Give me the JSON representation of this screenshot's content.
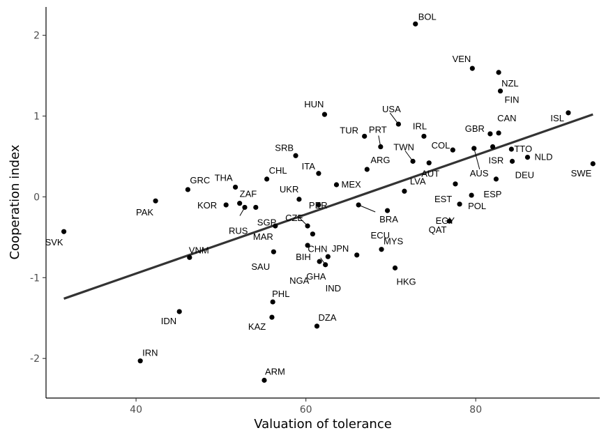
{
  "chart_data": {
    "type": "scatter",
    "xlabel": "Valuation of tolerance",
    "ylabel": "Cooperation index",
    "xlim": [
      29.4,
      94.6
    ],
    "ylim": [
      -2.49,
      2.35
    ],
    "xticks": [
      40,
      60,
      80
    ],
    "yticks": [
      -2,
      -1,
      0,
      1,
      2
    ],
    "grid": false,
    "colors": {
      "point": "#000000",
      "trend": "#333333",
      "axis": "#000000",
      "tick_label": "#4d4d4d"
    },
    "trendline": {
      "x": [
        31.5,
        93.8
      ],
      "y": [
        -1.26,
        1.02
      ]
    },
    "points": [
      {
        "label": "BOL",
        "x": 72.9,
        "y": 2.14
      },
      {
        "label": "VEN",
        "x": 79.6,
        "y": 1.59
      },
      {
        "label": "NZL",
        "x": 82.7,
        "y": 1.54
      },
      {
        "label": "FIN",
        "x": 82.9,
        "y": 1.31
      },
      {
        "label": "ISL",
        "x": 90.9,
        "y": 1.04
      },
      {
        "label": "HUN",
        "x": 62.2,
        "y": 1.02
      },
      {
        "label": "USA",
        "x": 70.9,
        "y": 0.9
      },
      {
        "label": "CAN",
        "x": 82.7,
        "y": 0.79
      },
      {
        "label": "GBR",
        "x": 81.7,
        "y": 0.78
      },
      {
        "label": "IRL",
        "x": 73.9,
        "y": 0.75
      },
      {
        "label": "TUR",
        "x": 66.9,
        "y": 0.75
      },
      {
        "label": "PRT",
        "x": 68.8,
        "y": 0.62
      },
      {
        "label": "TTO",
        "x": 84.2,
        "y": 0.59
      },
      {
        "label": "AUS",
        "x": 79.8,
        "y": 0.6
      },
      {
        "label": "SRB",
        "x": 58.8,
        "y": 0.51
      },
      {
        "label": "NLD",
        "x": 86.1,
        "y": 0.49
      },
      {
        "label": "ISR",
        "x": 82.0,
        "y": 0.62
      },
      {
        "label": "TWN",
        "x": 72.6,
        "y": 0.44
      },
      {
        "label": "COL",
        "x": 77.3,
        "y": 0.58
      },
      {
        "label": "DEU",
        "x": 84.3,
        "y": 0.44
      },
      {
        "label": "SWE",
        "x": 93.8,
        "y": 0.41
      },
      {
        "label": "AUT",
        "x": 74.5,
        "y": 0.42
      },
      {
        "label": "ARG",
        "x": 67.2,
        "y": 0.34
      },
      {
        "label": "ITA",
        "x": 61.5,
        "y": 0.29
      },
      {
        "label": "CHL",
        "x": 55.4,
        "y": 0.22
      },
      {
        "label": "ESP",
        "x": 82.4,
        "y": 0.22
      },
      {
        "label": "MEX",
        "x": 63.6,
        "y": 0.15
      },
      {
        "label": "THA",
        "x": 51.7,
        "y": 0.12
      },
      {
        "label": "GRC",
        "x": 46.1,
        "y": 0.09
      },
      {
        "label": "EST",
        "x": 77.6,
        "y": 0.16
      },
      {
        "label": "LVA",
        "x": 71.6,
        "y": 0.07
      },
      {
        "label": "UKR",
        "x": 59.2,
        "y": -0.03
      },
      {
        "label": "POL",
        "x": 79.5,
        "y": 0.02
      },
      {
        "label": "PAK",
        "x": 42.3,
        "y": -0.05
      },
      {
        "label": "ZAF",
        "x": 52.2,
        "y": -0.08
      },
      {
        "label": "KOR",
        "x": 50.6,
        "y": -0.1
      },
      {
        "label": "PER",
        "x": 61.5,
        "y": -0.1
      },
      {
        "label": "BRA",
        "x": 66.2,
        "y": -0.1
      },
      {
        "label": "EGY",
        "x": 78.1,
        "y": -0.09
      },
      {
        "label": "RUS",
        "x": 52.8,
        "y": -0.13
      },
      {
        "label": "SGP",
        "x": 54.1,
        "y": -0.13
      },
      {
        "label": "ECU",
        "x": 69.6,
        "y": -0.17
      },
      {
        "label": "QAT",
        "x": 76.9,
        "y": -0.3
      },
      {
        "label": "CZE",
        "x": 60.2,
        "y": -0.36
      },
      {
        "label": "MAR",
        "x": 56.4,
        "y": -0.36
      },
      {
        "label": "SVK",
        "x": 31.5,
        "y": -0.43
      },
      {
        "label": "CHN",
        "x": 60.8,
        "y": -0.46
      },
      {
        "label": "BIH",
        "x": 60.2,
        "y": -0.6
      },
      {
        "label": "MYS",
        "x": 68.9,
        "y": -0.65
      },
      {
        "label": "SAU",
        "x": 56.2,
        "y": -0.68
      },
      {
        "label": "JPN",
        "x": 66.0,
        "y": -0.72
      },
      {
        "label": "VNM",
        "x": 46.3,
        "y": -0.75
      },
      {
        "label": "NGA",
        "x": 61.6,
        "y": -0.8
      },
      {
        "label": "IND",
        "x": 62.3,
        "y": -0.84
      },
      {
        "label": "HKG",
        "x": 70.5,
        "y": -0.88
      },
      {
        "label": "GHA",
        "x": 62.6,
        "y": -0.74
      },
      {
        "label": "PHL",
        "x": 56.1,
        "y": -1.3
      },
      {
        "label": "IDN",
        "x": 45.1,
        "y": -1.42
      },
      {
        "label": "KAZ",
        "x": 56.0,
        "y": -1.49
      },
      {
        "label": "DZA",
        "x": 61.3,
        "y": -1.6
      },
      {
        "label": "IRN",
        "x": 40.5,
        "y": -2.03
      },
      {
        "label": "ARM",
        "x": 55.1,
        "y": -2.27
      }
    ]
  }
}
